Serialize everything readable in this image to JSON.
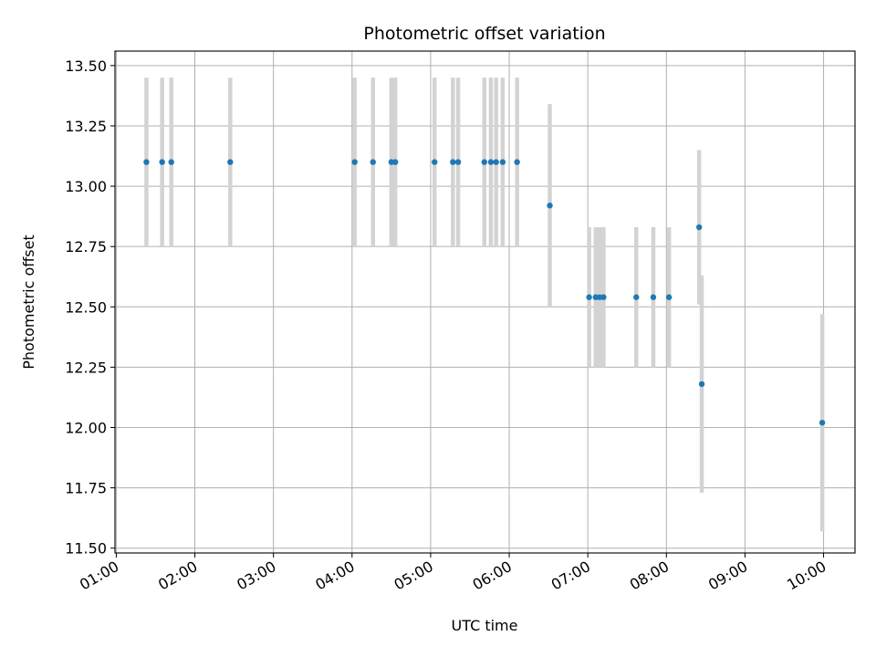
{
  "chart_data": {
    "type": "scatter",
    "title": "Photometric offset variation",
    "xlabel": "UTC time",
    "ylabel": "Photometric offset",
    "x_axis_kind": "time",
    "xlim": [
      "00:59",
      "10:24"
    ],
    "ylim": [
      11.48,
      13.56
    ],
    "xticks": [
      "01:00",
      "02:00",
      "03:00",
      "04:00",
      "05:00",
      "06:00",
      "07:00",
      "08:00",
      "09:00",
      "10:00"
    ],
    "yticks": [
      11.5,
      11.75,
      12.0,
      12.25,
      12.5,
      12.75,
      13.0,
      13.25,
      13.5
    ],
    "ytick_labels": [
      "11.50",
      "11.75",
      "12.00",
      "12.25",
      "12.50",
      "12.75",
      "13.00",
      "13.25",
      "13.50"
    ],
    "grid": true,
    "series": [
      {
        "marker_color": "#1f77b4",
        "errorbar_color": "#d3d3d3",
        "points": [
          {
            "x": "01:23",
            "y": 13.1,
            "err": 0.35
          },
          {
            "x": "01:35",
            "y": 13.1,
            "err": 0.35
          },
          {
            "x": "01:42",
            "y": 13.1,
            "err": 0.35
          },
          {
            "x": "02:27",
            "y": 13.1,
            "err": 0.35
          },
          {
            "x": "04:02",
            "y": 13.1,
            "err": 0.35
          },
          {
            "x": "04:16",
            "y": 13.1,
            "err": 0.35
          },
          {
            "x": "04:30",
            "y": 13.1,
            "err": 0.35
          },
          {
            "x": "04:33",
            "y": 13.1,
            "err": 0.35
          },
          {
            "x": "05:03",
            "y": 13.1,
            "err": 0.35
          },
          {
            "x": "05:17",
            "y": 13.1,
            "err": 0.35
          },
          {
            "x": "05:21",
            "y": 13.1,
            "err": 0.35
          },
          {
            "x": "05:41",
            "y": 13.1,
            "err": 0.35
          },
          {
            "x": "05:46",
            "y": 13.1,
            "err": 0.35
          },
          {
            "x": "05:50",
            "y": 13.1,
            "err": 0.35
          },
          {
            "x": "05:55",
            "y": 13.1,
            "err": 0.35
          },
          {
            "x": "06:06",
            "y": 13.1,
            "err": 0.35
          },
          {
            "x": "06:31",
            "y": 12.92,
            "err": 0.42
          },
          {
            "x": "07:01",
            "y": 12.54,
            "err": 0.29
          },
          {
            "x": "07:06",
            "y": 12.54,
            "err": 0.29
          },
          {
            "x": "07:09",
            "y": 12.54,
            "err": 0.29
          },
          {
            "x": "07:12",
            "y": 12.54,
            "err": 0.29
          },
          {
            "x": "07:37",
            "y": 12.54,
            "err": 0.29
          },
          {
            "x": "07:50",
            "y": 12.54,
            "err": 0.29
          },
          {
            "x": "08:02",
            "y": 12.54,
            "err": 0.29
          },
          {
            "x": "08:25",
            "y": 12.83,
            "err": 0.32
          },
          {
            "x": "08:27",
            "y": 12.18,
            "err": 0.45
          },
          {
            "x": "09:59",
            "y": 12.02,
            "err": 0.45
          }
        ]
      }
    ]
  }
}
